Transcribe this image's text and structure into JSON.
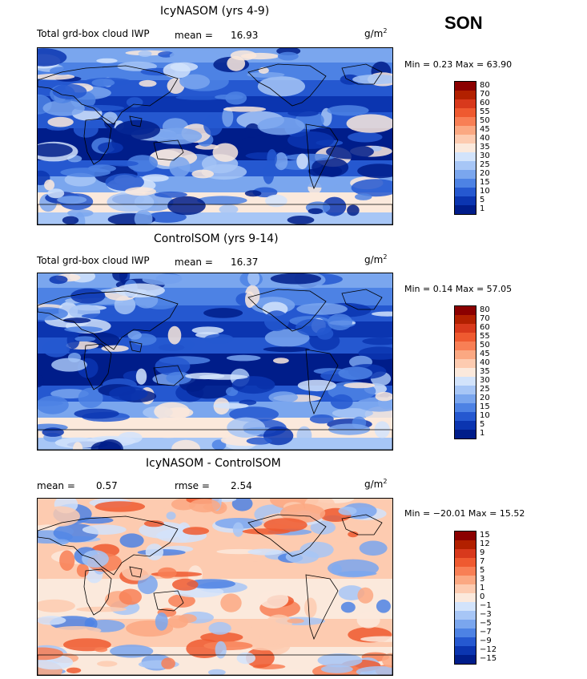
{
  "season": "SON",
  "units": {
    "base": "g/m",
    "exp": "2"
  },
  "panels": [
    {
      "title": "IcyNASOM (yrs 4-9)",
      "subtitle": "Total grd-box cloud IWP",
      "mean_label": "mean =",
      "mean_value": "16.93",
      "minmax": "Min =   0.23 Max =  63.90"
    },
    {
      "title": "ControlSOM (yrs 9-14)",
      "subtitle": "Total grd-box cloud IWP",
      "mean_label": "mean =",
      "mean_value": "16.37",
      "minmax": "Min =   0.14 Max =  57.05"
    },
    {
      "title": "IcyNASOM - ControlSOM",
      "mean_label": "mean =",
      "mean_value": "0.57",
      "rmse_label": "rmse =",
      "rmse_value": "2.54",
      "minmax": "Min = −20.01 Max =  15.52"
    }
  ],
  "chart_data": [
    {
      "type": "heatmap",
      "title": "IcyNASOM (yrs 4-9)",
      "variable": "Total grd-box cloud IWP",
      "units": "g/m^2",
      "mean": 16.93,
      "min": 0.23,
      "max": 63.9,
      "colorbar_levels": [
        80,
        70,
        60,
        55,
        50,
        45,
        40,
        35,
        30,
        25,
        20,
        15,
        10,
        5,
        1
      ],
      "colorbar_colors": [
        "#8b0000",
        "#b22000",
        "#d8391c",
        "#ef5a30",
        "#f87f55",
        "#fba882",
        "#fdcbb0",
        "#fbe9dc",
        "#d2e3fb",
        "#a7c6f6",
        "#7aa6ee",
        "#4d82e4",
        "#2558d0",
        "#0b35b0",
        "#001d8a"
      ]
    },
    {
      "type": "heatmap",
      "title": "ControlSOM (yrs 9-14)",
      "variable": "Total grd-box cloud IWP",
      "units": "g/m^2",
      "mean": 16.37,
      "min": 0.14,
      "max": 57.05,
      "colorbar_levels": [
        80,
        70,
        60,
        55,
        50,
        45,
        40,
        35,
        30,
        25,
        20,
        15,
        10,
        5,
        1
      ],
      "colorbar_colors": [
        "#8b0000",
        "#b22000",
        "#d8391c",
        "#ef5a30",
        "#f87f55",
        "#fba882",
        "#fdcbb0",
        "#fbe9dc",
        "#d2e3fb",
        "#a7c6f6",
        "#7aa6ee",
        "#4d82e4",
        "#2558d0",
        "#0b35b0",
        "#001d8a"
      ]
    },
    {
      "type": "heatmap",
      "title": "IcyNASOM - ControlSOM",
      "units": "g/m^2",
      "mean": 0.57,
      "rmse": 2.54,
      "min": -20.01,
      "max": 15.52,
      "colorbar_levels": [
        15,
        12,
        9,
        7,
        5,
        3,
        1,
        0,
        -1,
        -3,
        -5,
        -7,
        -9,
        -12,
        -15
      ],
      "colorbar_colors": [
        "#8b0000",
        "#b22000",
        "#d8391c",
        "#ef5a30",
        "#f87f55",
        "#fba882",
        "#fdcbb0",
        "#fbe9dc",
        "#d2e3fb",
        "#a7c6f6",
        "#7aa6ee",
        "#4d82e4",
        "#2558d0",
        "#0b35b0",
        "#001d8a"
      ]
    }
  ]
}
